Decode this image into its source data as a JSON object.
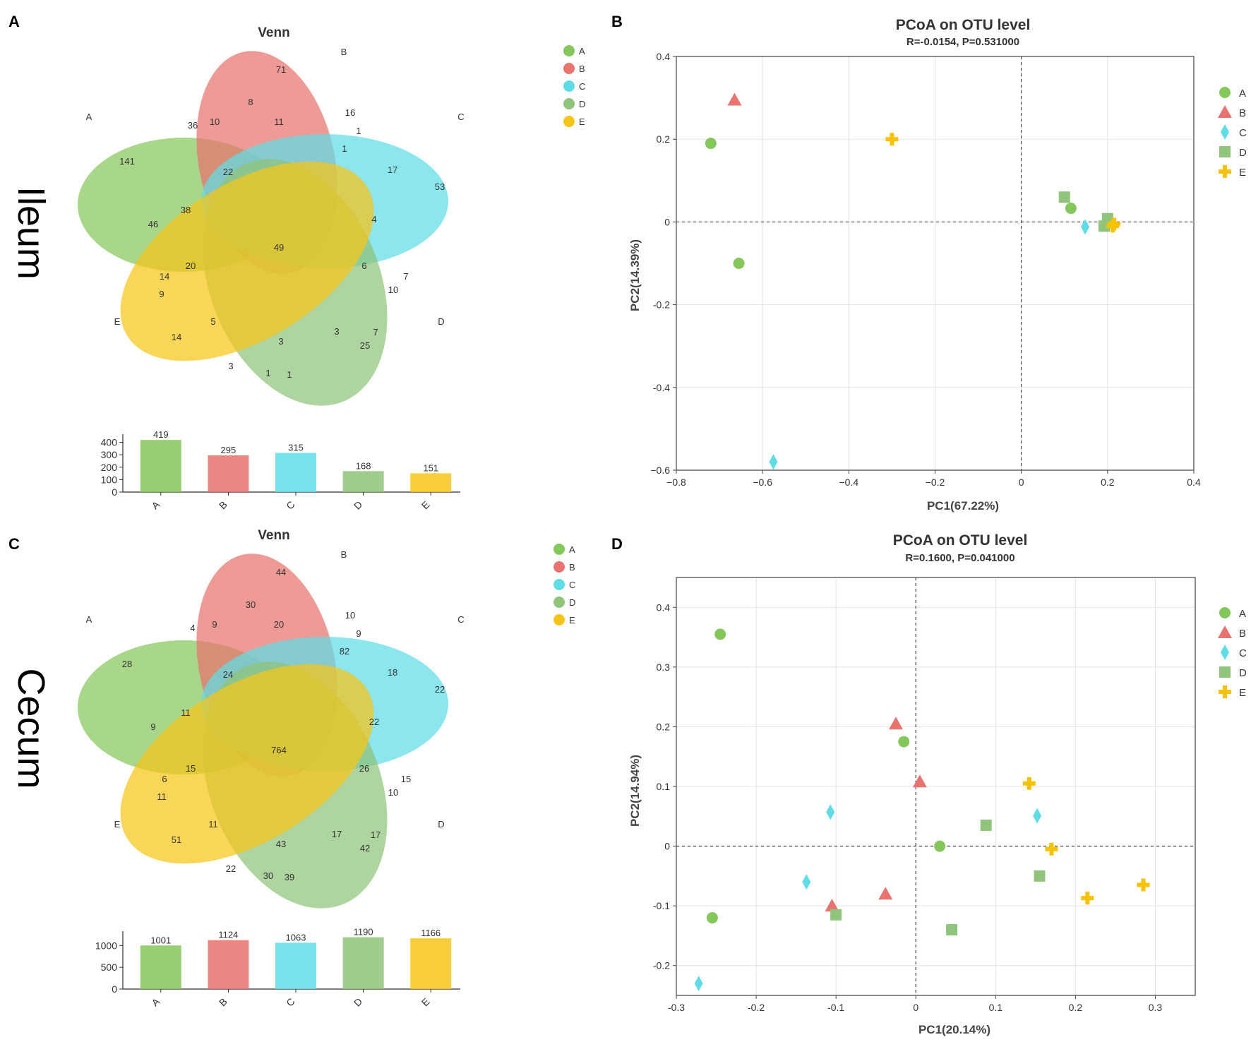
{
  "colors": {
    "A": "#86c75c",
    "B": "#e8736f",
    "C": "#5fdde6",
    "D": "#8fc47a",
    "E": "#f7c518",
    "Eplus": "#f9c200"
  },
  "sets": [
    "A",
    "B",
    "C",
    "D",
    "E"
  ],
  "legend": [
    "A",
    "B",
    "C",
    "D",
    "E"
  ],
  "venn_title": "Venn",
  "panels": {
    "a": {
      "letter": "A",
      "tissue": "Ileum",
      "regions": [
        "141",
        "71",
        "53",
        "25",
        "14",
        "36",
        "10",
        "8",
        "11",
        "16",
        "1",
        "1",
        "17",
        "4",
        "6",
        "7",
        "10",
        "7",
        "3",
        "3",
        "1",
        "1",
        "3",
        "5",
        "9",
        "14",
        "20",
        "38",
        "46",
        "22",
        "49"
      ],
      "bars": {
        "labels": [
          "A",
          "B",
          "C",
          "D",
          "E"
        ],
        "values": [
          419,
          295,
          315,
          168,
          151
        ],
        "ticks": [
          "0",
          "100",
          "200",
          "300",
          "400"
        ],
        "ymax": 420
      }
    },
    "b": {
      "letter": "B",
      "title": "PCoA on OTU level",
      "subtitle": "R=-0.0154, P=0.531000",
      "xlabel": "PC1(67.22%)",
      "ylabel": "PC2(14.39%)"
    },
    "c": {
      "letter": "C",
      "tissue": "Cecum",
      "regions": [
        "28",
        "44",
        "22",
        "42",
        "51",
        "4",
        "9",
        "30",
        "20",
        "10",
        "9",
        "82",
        "18",
        "22",
        "26",
        "15",
        "10",
        "17",
        "17",
        "43",
        "30",
        "39",
        "22",
        "11",
        "11",
        "6",
        "15",
        "11",
        "9",
        "24",
        "764"
      ],
      "bars": {
        "labels": [
          "A",
          "B",
          "C",
          "D",
          "E"
        ],
        "values": [
          1001,
          1124,
          1063,
          1190,
          1166
        ],
        "ticks": [
          "0",
          "500",
          "1000"
        ],
        "ymax": 1200
      }
    },
    "d": {
      "letter": "D",
      "title": "PCoA on OTU level",
      "subtitle": "R=0.1600, P=0.041000",
      "xlabel": "PC1(20.14%)",
      "ylabel": "PC2(14.94%)"
    }
  },
  "chart_data": [
    {
      "type": "scatter",
      "panel": "B",
      "title": "PCoA on OTU level",
      "subtitle": "R=-0.0154, P=0.531000",
      "xlabel": "PC1(67.22%)",
      "ylabel": "PC2(14.39%)",
      "xlim": [
        -0.8,
        0.4
      ],
      "ylim": [
        -0.6,
        0.4
      ],
      "xticks": [
        -0.8,
        -0.6,
        -0.4,
        -0.2,
        0,
        0.2,
        0.4
      ],
      "yticks": [
        -0.6,
        -0.4,
        -0.2,
        0,
        0.2,
        0.4
      ],
      "xtick_labels": [
        "−0.8",
        "−0.6",
        "−0.4",
        "−0.2",
        "0",
        "0.2",
        "0.4"
      ],
      "ytick_labels": [
        "−0.6",
        "-0.4",
        "-0.2",
        "0",
        "0.2",
        "0.4"
      ],
      "series": [
        {
          "name": "A",
          "marker": "circle",
          "points": [
            [
              -0.72,
              0.19
            ],
            [
              -0.655,
              -0.1
            ],
            [
              0.115,
              0.033
            ]
          ]
        },
        {
          "name": "B",
          "marker": "triangle",
          "points": [
            [
              -0.665,
              0.295
            ]
          ]
        },
        {
          "name": "C",
          "marker": "diamond",
          "points": [
            [
              -0.575,
              -0.58
            ],
            [
              0.148,
              -0.012
            ],
            [
              0.21,
              -0.005
            ]
          ]
        },
        {
          "name": "D",
          "marker": "square",
          "points": [
            [
              0.1,
              0.06
            ],
            [
              0.2,
              0.008
            ],
            [
              0.192,
              -0.01
            ]
          ]
        },
        {
          "name": "E",
          "marker": "plus",
          "points": [
            [
              -0.3,
              0.2
            ],
            [
              0.215,
              -0.005
            ],
            [
              0.212,
              -0.01
            ]
          ]
        }
      ]
    },
    {
      "type": "scatter",
      "panel": "D",
      "title": "PCoA on OTU level",
      "subtitle": "R=0.1600, P=0.041000",
      "xlabel": "PC1(20.14%)",
      "ylabel": "PC2(14.94%)",
      "xlim": [
        -0.3,
        0.35
      ],
      "ylim": [
        -0.25,
        0.45
      ],
      "xticks": [
        -0.3,
        -0.2,
        -0.1,
        0,
        0.1,
        0.2,
        0.3
      ],
      "yticks": [
        -0.2,
        -0.1,
        0,
        0.1,
        0.2,
        0.3,
        0.4
      ],
      "xtick_labels": [
        "-0.3",
        "-0.2",
        "-0.1",
        "0",
        "0.1",
        "0.2",
        "0.3"
      ],
      "ytick_labels": [
        "-0.2",
        "-0.1",
        "0",
        "0.1",
        "0.2",
        "0.3",
        "0.4"
      ],
      "series": [
        {
          "name": "A",
          "marker": "circle",
          "points": [
            [
              -0.245,
              0.355
            ],
            [
              -0.015,
              0.175
            ],
            [
              0.03,
              0.0
            ],
            [
              -0.255,
              -0.12
            ]
          ]
        },
        {
          "name": "B",
          "marker": "triangle",
          "points": [
            [
              -0.025,
              0.205
            ],
            [
              0.005,
              0.108
            ],
            [
              -0.105,
              -0.1
            ],
            [
              -0.038,
              -0.08
            ]
          ]
        },
        {
          "name": "C",
          "marker": "diamond",
          "points": [
            [
              -0.107,
              0.057
            ],
            [
              0.152,
              0.051
            ],
            [
              -0.137,
              -0.06
            ],
            [
              -0.272,
              -0.23
            ]
          ]
        },
        {
          "name": "D",
          "marker": "square",
          "points": [
            [
              0.088,
              0.035
            ],
            [
              0.155,
              -0.05
            ],
            [
              0.045,
              -0.14
            ],
            [
              -0.1,
              -0.115
            ]
          ]
        },
        {
          "name": "E",
          "marker": "plus",
          "points": [
            [
              0.142,
              0.105
            ],
            [
              0.17,
              -0.005
            ],
            [
              0.215,
              -0.087
            ],
            [
              0.285,
              -0.065
            ]
          ]
        }
      ]
    }
  ]
}
